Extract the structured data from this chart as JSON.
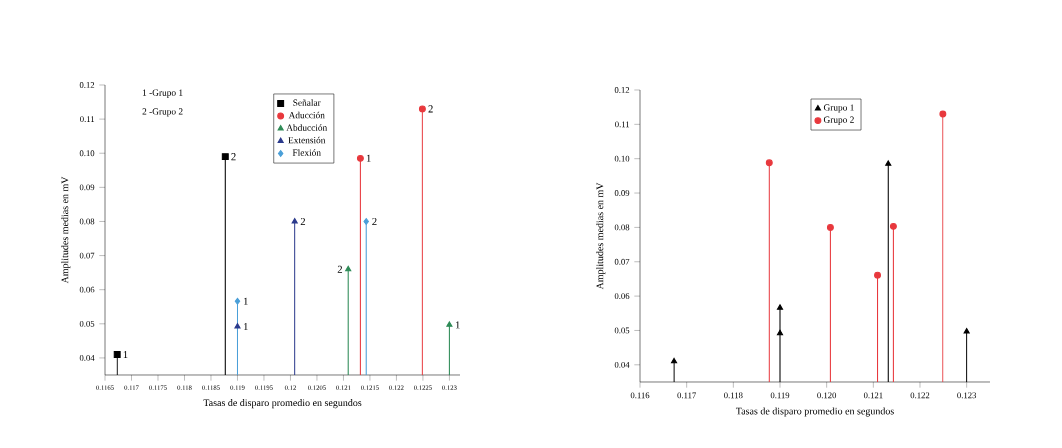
{
  "chart_data": [
    {
      "type": "lollipop",
      "xlabel": "Tasas de disparo promedio en segundos",
      "ylabel": "Amplitudes medias en mV",
      "xlim": [
        0.1165,
        0.1232
      ],
      "ylim": [
        0.035,
        0.12
      ],
      "xticks": [
        0.1165,
        0.117,
        0.1175,
        0.118,
        0.1185,
        0.119,
        0.1195,
        0.12,
        0.1205,
        0.121,
        0.1215,
        0.122,
        0.1225,
        0.123
      ],
      "yticks": [
        0.04,
        0.05,
        0.06,
        0.07,
        0.08,
        0.09,
        {
          "value": 0.1,
          "label": "0.10"
        },
        0.11,
        0.12
      ],
      "legend": "top",
      "series": [
        {
          "name": "Señalar",
          "color": "#000000",
          "marker": "square",
          "x": [
            0.11673,
            0.11877
          ],
          "values": [
            0.041,
            0.099
          ]
        },
        {
          "name": "Aducción",
          "color": "#e8383d",
          "marker": "circle",
          "x": [
            0.12132,
            0.12249
          ],
          "values": [
            0.0985,
            0.113
          ]
        },
        {
          "name": "Abducción",
          "color": "#2e8b57",
          "marker": "triangle",
          "x": [
            0.12109,
            0.123
          ],
          "values": [
            0.066,
            0.0497
          ]
        },
        {
          "name": "Extensión",
          "color": "#2b3a8c",
          "marker": "triangle",
          "x": [
            0.119,
            0.12008
          ],
          "values": [
            0.0492,
            0.08
          ]
        },
        {
          "name": "Flexión",
          "color": "#4a9fd8",
          "marker": "diamond",
          "x": [
            0.119,
            0.12143
          ],
          "values": [
            0.0566,
            0.08
          ]
        }
      ],
      "annotations": [
        "1 -Grupo 1",
        "2 -Grupo 2",
        {
          "text": "1",
          "x": 0.11673,
          "y": 0.041
        },
        {
          "text": "2",
          "x": 0.11877,
          "y": 0.099
        },
        {
          "text": "1",
          "x": 0.12132,
          "y": 0.0985
        },
        {
          "text": "2",
          "x": 0.12249,
          "y": 0.113
        },
        {
          "text": "2",
          "x": 0.12109,
          "y": 0.066
        },
        {
          "text": "1",
          "x": 0.123,
          "y": 0.0497
        },
        {
          "text": "1",
          "x": 0.119,
          "y": 0.0492
        },
        {
          "text": "2",
          "x": 0.12008,
          "y": 0.08
        },
        {
          "text": "1",
          "x": 0.119,
          "y": 0.0566
        },
        {
          "text": "2",
          "x": 0.12143,
          "y": 0.08
        }
      ]
    },
    {
      "type": "lollipop",
      "xlabel": "Tasas de disparo promedio en segundos",
      "ylabel": "Amplitudes medias en mV",
      "xlim": [
        0.116,
        0.1235
      ],
      "ylim": [
        0.035,
        0.12
      ],
      "xticks": [
        0.116,
        0.117,
        0.118,
        0.119,
        {
          "value": 0.12,
          "label": "0.120"
        },
        0.121,
        0.122,
        0.123
      ],
      "yticks": [
        0.04,
        0.05,
        0.06,
        0.07,
        0.08,
        0.09,
        {
          "value": 0.1,
          "label": "0.10"
        },
        0.11,
        0.12
      ],
      "legend": "top",
      "series": [
        {
          "name": "Grupo 1",
          "color": "#000000",
          "marker": "triangle",
          "x": [
            0.11673,
            0.119,
            0.119,
            0.12132,
            0.123
          ],
          "values": [
            0.041,
            0.0492,
            0.0566,
            0.0985,
            0.0497
          ]
        },
        {
          "name": "Grupo 2",
          "color": "#e8383d",
          "marker": "circle",
          "x": [
            0.11877,
            0.12008,
            0.12109,
            0.12143,
            0.12249
          ],
          "values": [
            0.0988,
            0.08,
            0.0661,
            0.0803,
            0.113
          ]
        }
      ]
    }
  ]
}
